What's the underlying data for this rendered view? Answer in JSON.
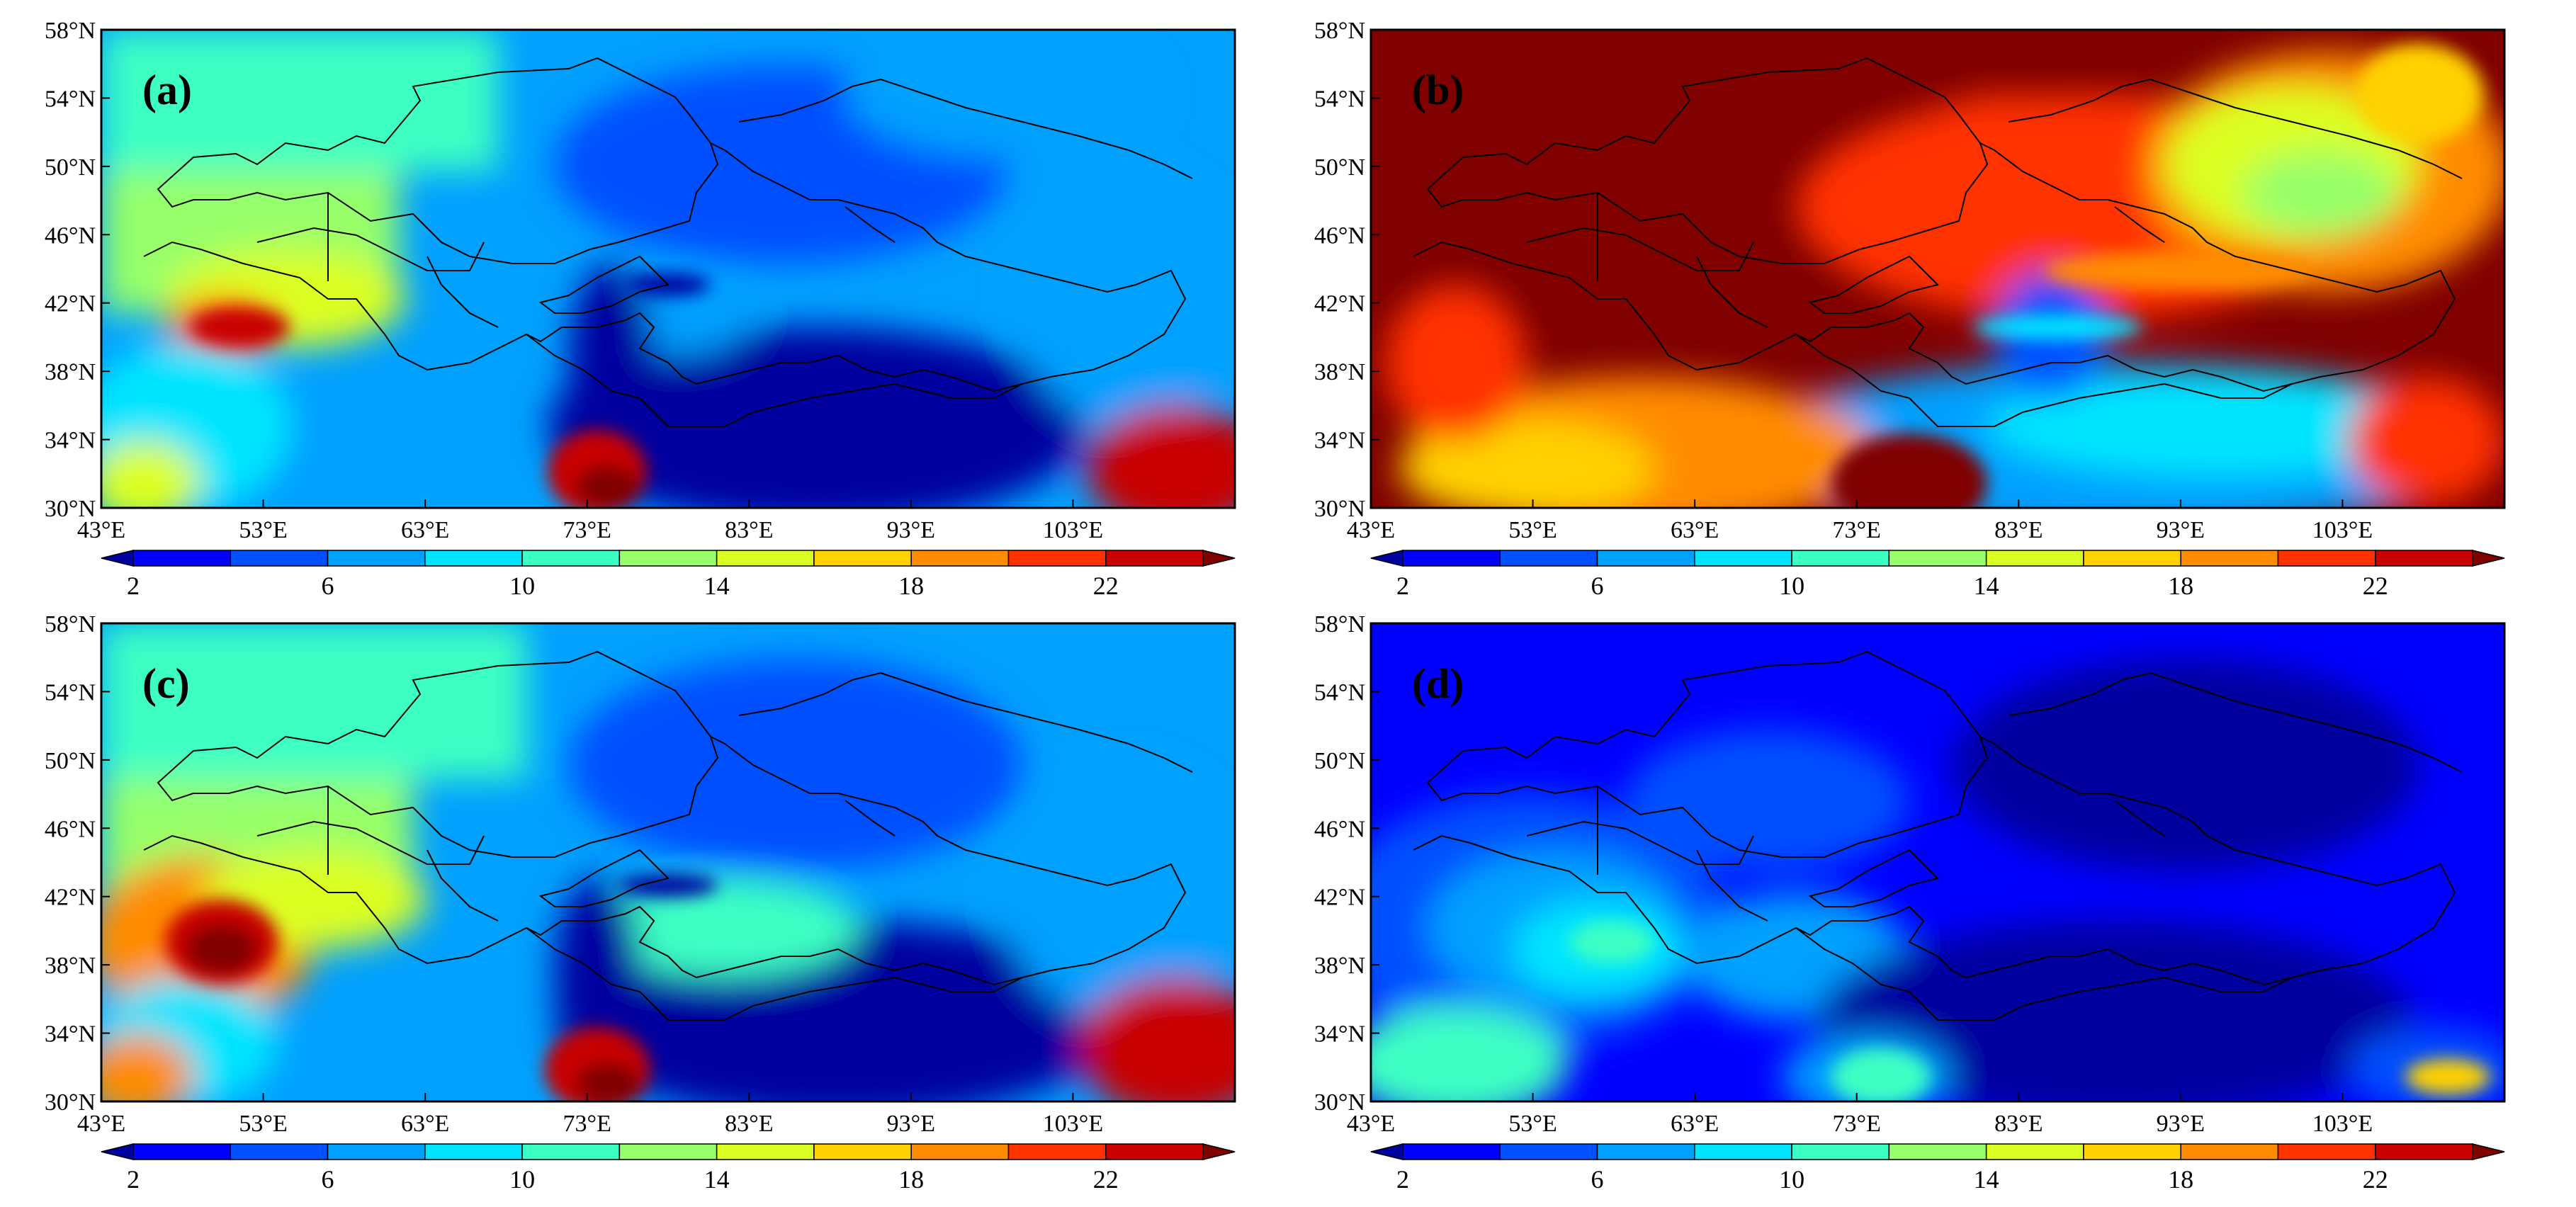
{
  "figure": {
    "panels": [
      {
        "label": "(a)",
        "scheme": "a"
      },
      {
        "label": "(b)",
        "scheme": "b"
      },
      {
        "label": "(c)",
        "scheme": "c"
      },
      {
        "label": "(d)",
        "scheme": "d"
      }
    ],
    "lat_ticks": [
      "30°N",
      "34°N",
      "38°N",
      "42°N",
      "46°N",
      "50°N",
      "54°N",
      "58°N"
    ],
    "lon_ticks": [
      "43°E",
      "53°E",
      "63°E",
      "73°E",
      "83°E",
      "93°E",
      "103°E"
    ],
    "lat_range": [
      30,
      58
    ],
    "lon_range": [
      43,
      113
    ],
    "colorbar": {
      "levels": [
        2,
        4,
        6,
        8,
        10,
        12,
        14,
        16,
        18,
        20,
        22,
        24
      ],
      "labels": [
        "2",
        "6",
        "10",
        "14",
        "18",
        "22"
      ],
      "colors": [
        "#00009f",
        "#0000ff",
        "#0050ff",
        "#00a0ff",
        "#00e5ff",
        "#3cffc3",
        "#96ff69",
        "#dcff23",
        "#ffd200",
        "#ff8c00",
        "#ff3200",
        "#c80000",
        "#800000"
      ]
    }
  }
}
